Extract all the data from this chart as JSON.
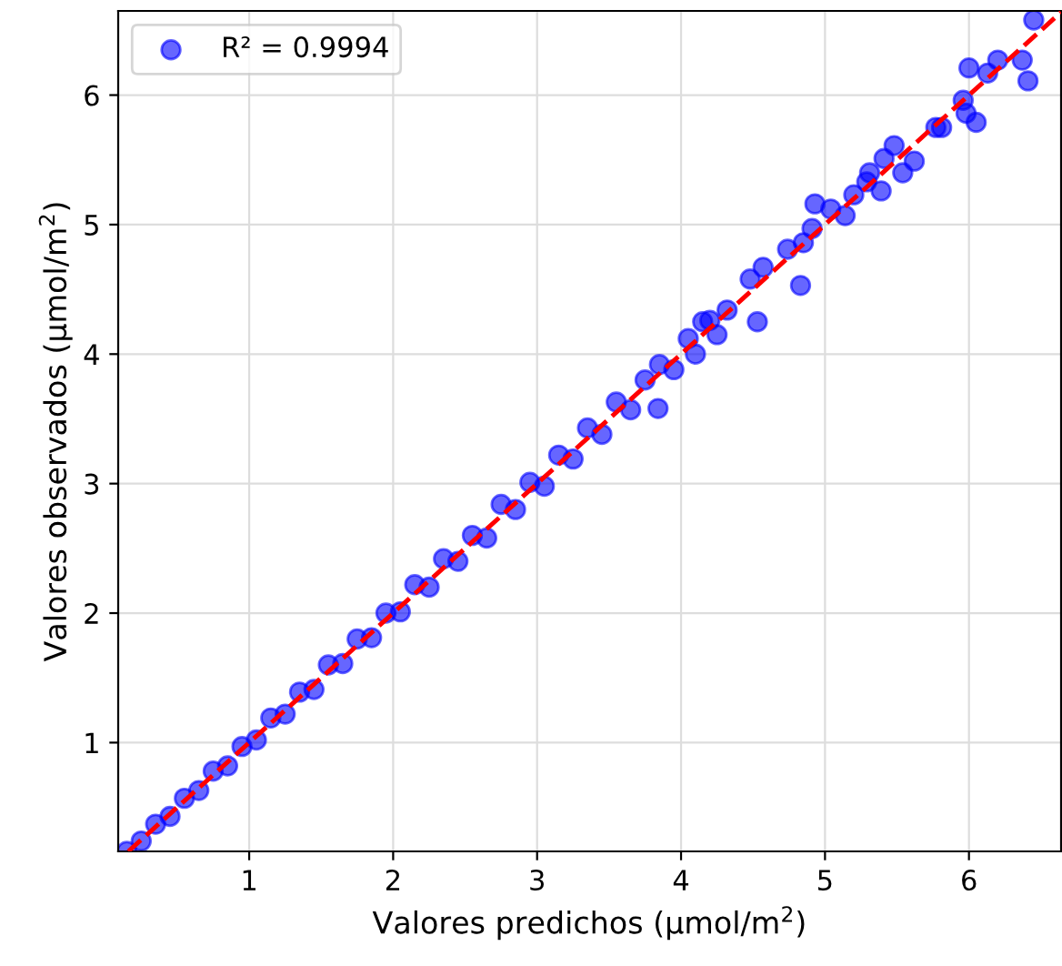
{
  "chart_data": {
    "type": "scatter",
    "xlabel": "Valores predichos (µmol/m$^{2}$)",
    "ylabel": "Valores observados (µmol/m$^{2}$)",
    "xlim": [
      0.09,
      6.64
    ],
    "ylim": [
      0.16,
      6.65
    ],
    "xticks": [
      1,
      2,
      3,
      4,
      5,
      6
    ],
    "yticks": [
      1,
      2,
      3,
      4,
      5,
      6
    ],
    "grid": true,
    "legend": "top left",
    "series": [
      {
        "name": "R² = 0.9994",
        "marker": "circle",
        "color": "#0000ff",
        "x": [
          0.15,
          0.25,
          0.35,
          0.45,
          0.55,
          0.65,
          0.75,
          0.85,
          0.95,
          1.05,
          1.15,
          1.25,
          1.35,
          1.45,
          1.55,
          1.65,
          1.75,
          1.85,
          1.95,
          2.05,
          2.15,
          2.25,
          2.35,
          2.45,
          2.55,
          2.65,
          2.75,
          2.85,
          2.95,
          3.05,
          3.15,
          3.25,
          3.35,
          3.45,
          3.55,
          3.65,
          3.75,
          3.84,
          3.85,
          3.95,
          4.05,
          4.1,
          4.2,
          4.25,
          4.15,
          4.32,
          4.53,
          4.48,
          4.57,
          4.74,
          4.83,
          4.85,
          4.91,
          5.04,
          4.93,
          5.14,
          5.2,
          5.39,
          5.29,
          5.31,
          5.54,
          5.62,
          5.41,
          5.48,
          5.77,
          5.81,
          5.96,
          5.98,
          6.05,
          6.0,
          6.13,
          6.2,
          6.37,
          6.41,
          6.45
        ],
        "values": [
          0.16,
          0.24,
          0.37,
          0.43,
          0.57,
          0.63,
          0.78,
          0.82,
          0.97,
          1.02,
          1.19,
          1.22,
          1.39,
          1.41,
          1.6,
          1.61,
          1.8,
          1.81,
          2.0,
          2.01,
          2.22,
          2.2,
          2.42,
          2.4,
          2.6,
          2.58,
          2.84,
          2.8,
          3.01,
          2.98,
          3.22,
          3.19,
          3.43,
          3.38,
          3.63,
          3.57,
          3.8,
          3.58,
          3.92,
          3.88,
          4.12,
          4.0,
          4.26,
          4.15,
          4.25,
          4.34,
          4.25,
          4.58,
          4.67,
          4.81,
          4.53,
          4.86,
          4.97,
          5.12,
          5.16,
          5.07,
          5.23,
          5.26,
          5.33,
          5.4,
          5.4,
          5.49,
          5.51,
          5.61,
          5.75,
          5.75,
          5.96,
          5.86,
          5.79,
          6.21,
          6.17,
          6.27,
          6.27,
          6.11,
          6.58
        ]
      },
      {
        "type": "line",
        "color": "#ff0000",
        "line_style": "dashed",
        "x": [
          0.16,
          6.64
        ],
        "values": [
          0.16,
          6.64
        ]
      }
    ]
  }
}
